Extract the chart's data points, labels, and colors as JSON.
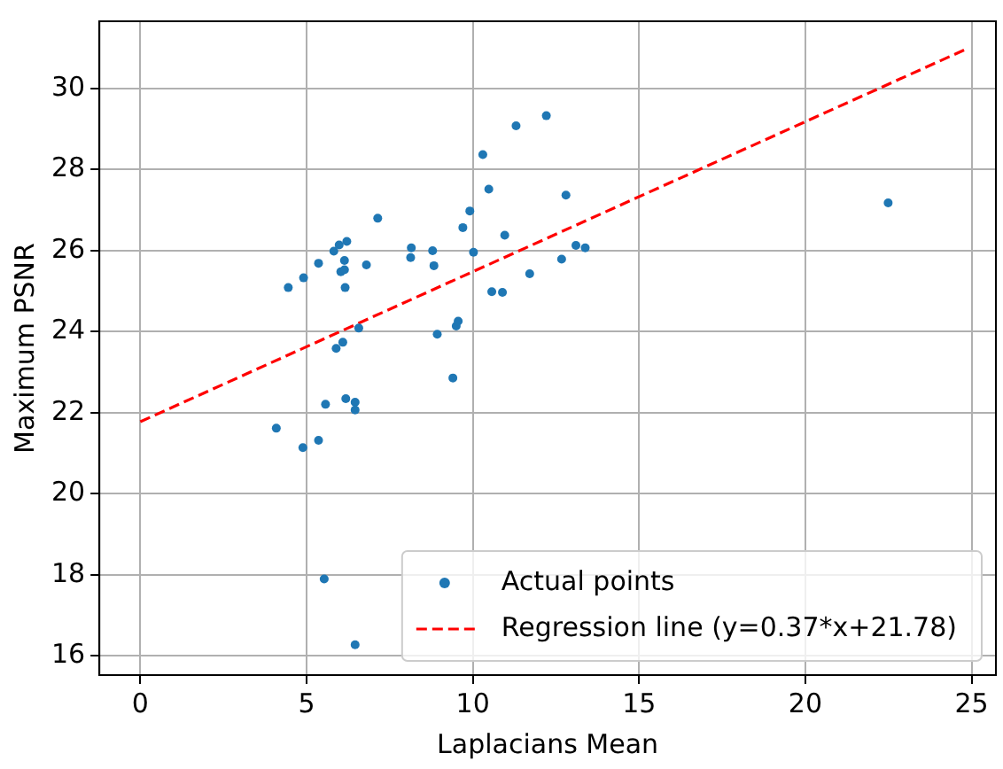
{
  "chart_data": {
    "type": "scatter",
    "xlabel": "Laplacians Mean",
    "ylabel": "Maximum PSNR",
    "xlim": [
      -1.23,
      25.73
    ],
    "ylim": [
      15.53,
      31.66
    ],
    "xticks": [
      0,
      5,
      10,
      15,
      20,
      25
    ],
    "yticks": [
      16,
      18,
      20,
      22,
      24,
      26,
      28,
      30
    ],
    "grid": true,
    "legend": "bottom right",
    "series": [
      {
        "name": "Actual points",
        "type": "scatter",
        "color": "#1f77b4",
        "marker": "circle",
        "x": [
          4.45,
          4.91,
          5.36,
          5.82,
          5.98,
          6.21,
          6.14,
          6.03,
          6.14,
          6.16,
          6.8,
          7.14,
          8.15,
          8.13,
          8.79,
          8.83,
          9.7,
          9.91,
          10.02,
          10.3,
          10.48,
          10.96,
          10.57,
          10.89,
          11.3,
          11.71,
          6.57,
          5.89,
          6.09,
          8.93,
          9.5,
          9.56,
          12.21,
          12.8,
          13.1,
          13.38,
          12.67,
          22.49,
          9.4,
          5.57,
          6.18,
          6.46,
          6.46,
          4.09,
          4.89,
          5.36,
          5.53,
          6.46
        ],
        "values": [
          25.09,
          25.33,
          25.69,
          25.99,
          26.14,
          26.23,
          25.76,
          25.48,
          25.53,
          25.09,
          25.65,
          26.8,
          26.07,
          25.83,
          26.0,
          25.63,
          26.57,
          26.98,
          25.96,
          28.37,
          27.52,
          26.38,
          24.99,
          24.97,
          29.08,
          25.43,
          24.09,
          23.59,
          23.74,
          23.94,
          24.14,
          24.26,
          29.33,
          27.37,
          26.13,
          26.07,
          25.79,
          27.18,
          22.86,
          22.21,
          22.35,
          22.26,
          22.07,
          21.62,
          21.14,
          21.32,
          17.9,
          16.28
        ]
      },
      {
        "name": "Regression line (y=0.37*x+21.78)",
        "type": "line",
        "color": "#ff0000",
        "line_style": "dashed",
        "marker": "none",
        "x": [
          0,
          24.8
        ],
        "values": [
          21.78,
          30.96
        ]
      }
    ]
  }
}
